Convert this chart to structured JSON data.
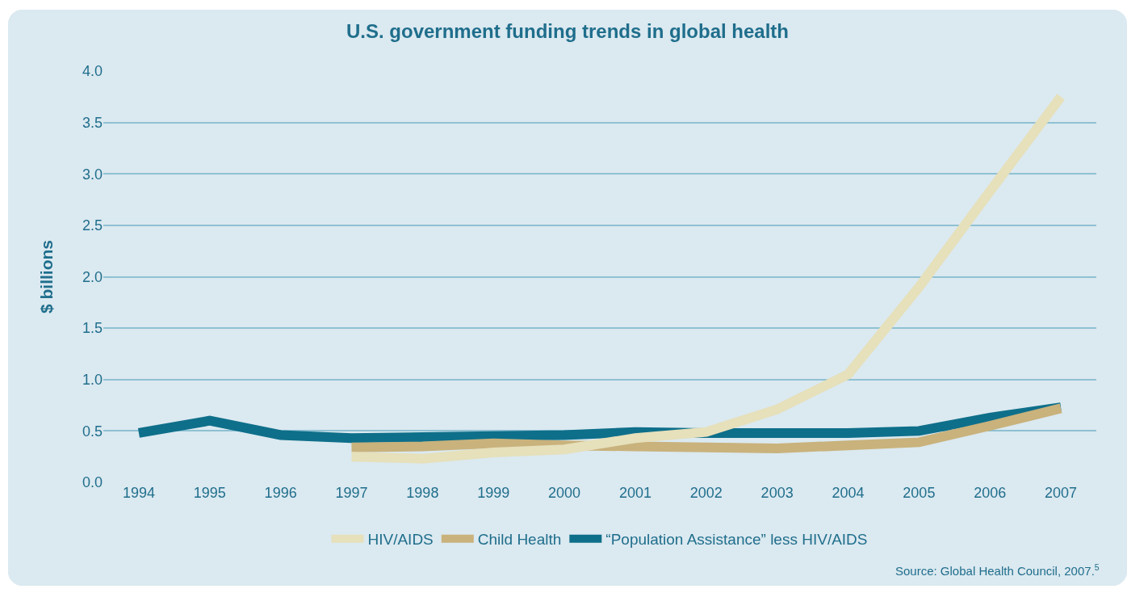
{
  "chart_data": {
    "type": "line",
    "title": "U.S. government funding trends in global health",
    "ylabel": "$ billions",
    "categories": [
      "1994",
      "1995",
      "1996",
      "1997",
      "1998",
      "1999",
      "2000",
      "2001",
      "2002",
      "2003",
      "2004",
      "2005",
      "2006",
      "2007"
    ],
    "series": [
      {
        "name": "HIV/AIDS",
        "color": "#e6e0bb",
        "values": [
          null,
          null,
          null,
          0.25,
          0.23,
          0.29,
          0.32,
          0.43,
          0.49,
          0.71,
          1.05,
          1.9,
          2.83,
          3.75
        ]
      },
      {
        "name": "Child Health",
        "color": "#c9b27c",
        "values": [
          null,
          null,
          null,
          0.34,
          0.35,
          0.38,
          0.36,
          0.35,
          0.34,
          0.33,
          0.36,
          0.39,
          0.55,
          0.72
        ]
      },
      {
        "name": "“Population Assistance” less HIV/AIDS",
        "color": "#0e6f8a",
        "values": [
          0.48,
          0.6,
          0.46,
          0.43,
          0.44,
          0.45,
          0.46,
          0.49,
          0.48,
          0.48,
          0.48,
          0.5,
          0.63,
          0.73
        ]
      }
    ],
    "ylim": [
      0,
      4
    ],
    "yticks": [
      {
        "value": 0,
        "label": "0.0"
      },
      {
        "value": 0.5,
        "label": "0.5"
      },
      {
        "value": 1,
        "label": "1.0"
      },
      {
        "value": 1.5,
        "label": "1.5"
      },
      {
        "value": 2,
        "label": "2.0"
      },
      {
        "value": 2.5,
        "label": "2.5"
      },
      {
        "value": 3,
        "label": "3.0"
      },
      {
        "value": 3.5,
        "label": "3.5"
      },
      {
        "value": 4,
        "label": "4.0"
      }
    ],
    "grid": "y",
    "legend": "bottom",
    "marker": "none",
    "line_style": "solid",
    "annotations": [
      "Source: Global Health Council, 2007.$^{5}$"
    ]
  }
}
